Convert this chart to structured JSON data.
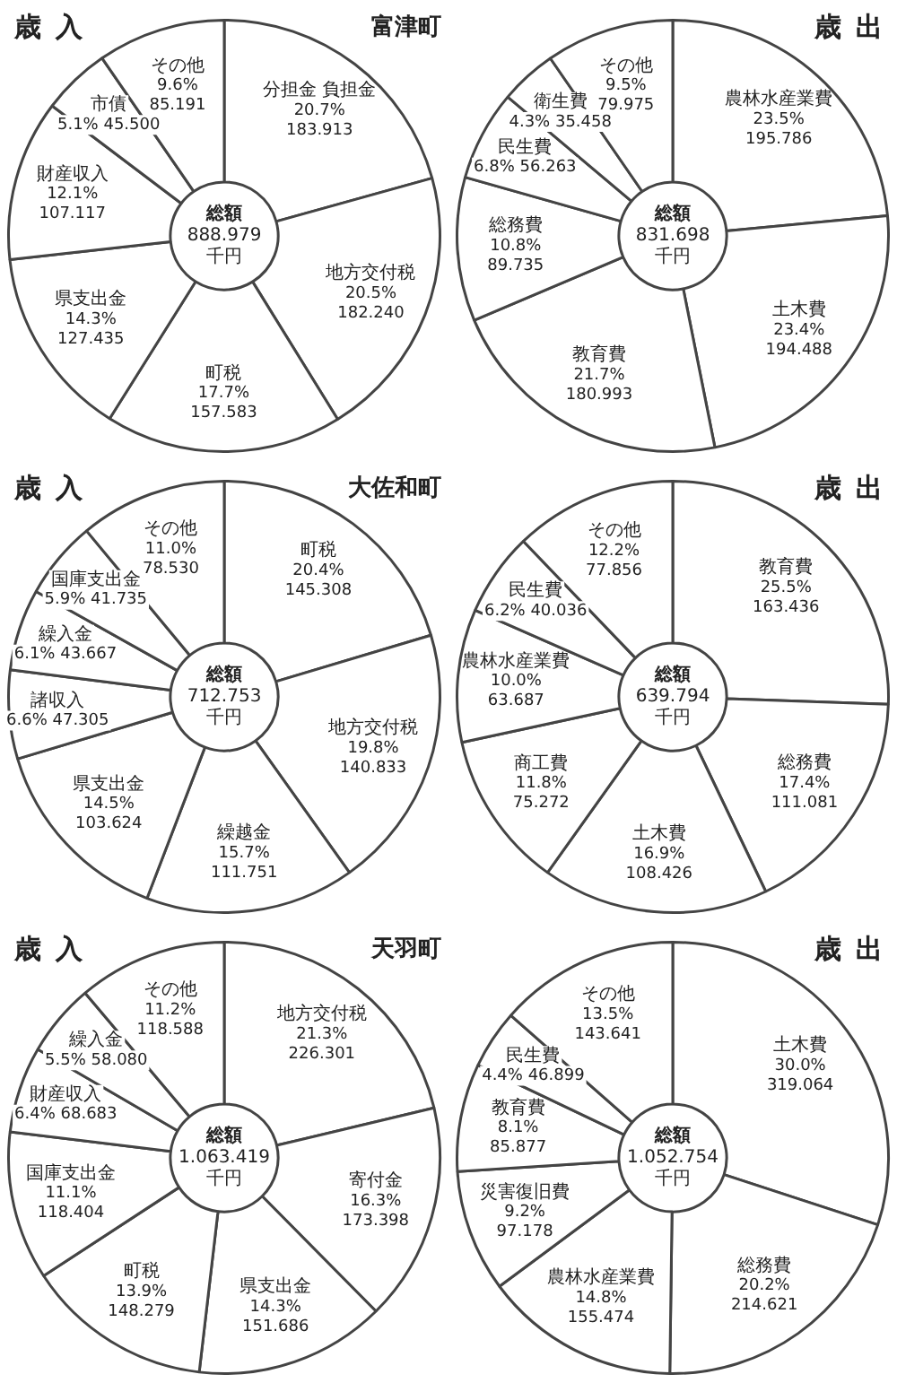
{
  "chart_data": [
    {
      "type": "donut",
      "title": "歳入",
      "subtitle": "富津町",
      "legend": false,
      "categories": [
        "分担金 負担金",
        "地方交付税",
        "町税",
        "県支出金",
        "財産収入",
        "市債",
        "その他"
      ],
      "values": [
        183.913,
        182.24,
        157.583,
        127.435,
        107.117,
        45.5,
        85.191
      ],
      "value_labels": [
        "20.7%\n183.913",
        "20.5%\n182.240",
        "17.7%\n157.583",
        "14.3%\n127.435",
        "12.1%\n107.117",
        "5.1%\n45.500",
        "9.6%\n85.191"
      ],
      "colors": [
        "#ffffff",
        "#ffffff",
        "#ffffff",
        "#ffffff",
        "#ffffff",
        "#ffffff",
        "#ffffff"
      ],
      "annotations": [
        "総額 888.979 千円"
      ]
    },
    {
      "type": "donut",
      "title": "歳出",
      "legend": false,
      "categories": [
        "農林水産業費",
        "土木費",
        "教育費",
        "総務費",
        "民生費",
        "衛生費",
        "その他"
      ],
      "values": [
        195.786,
        194.488,
        180.993,
        89.735,
        56.263,
        35.458,
        79.975
      ],
      "value_labels": [
        "23.5%\n195.786",
        "23.4%\n194.488",
        "21.7%\n180.993",
        "10.8%\n89.735",
        "6.8%\n56.263",
        "4.3%\n35.458",
        "9.5%\n79.975"
      ],
      "colors": [
        "#ffffff",
        "#ffffff",
        "#ffffff",
        "#ffffff",
        "#ffffff",
        "#ffffff",
        "#ffffff"
      ],
      "annotations": [
        "総額 831.698 千円"
      ]
    },
    {
      "type": "donut",
      "title": "歳入",
      "subtitle": "大佐和町",
      "legend": false,
      "categories": [
        "町税",
        "地方交付税",
        "繰越金",
        "県支出金",
        "諸収入",
        "繰入金",
        "国庫支出金",
        "その他"
      ],
      "values": [
        145.308,
        140.833,
        111.751,
        103.624,
        47.305,
        43.667,
        41.735,
        78.53
      ],
      "value_labels": [
        "20.4%\n145.308",
        "19.8%\n140.833",
        "15.7%\n111.751",
        "14.5%\n103.624",
        "6.6%\n47.305",
        "6.1%\n43.667",
        "5.9%\n41.735",
        "11.0%\n78.530"
      ],
      "colors": [
        "#ffffff",
        "#ffffff",
        "#ffffff",
        "#ffffff",
        "#ffffff",
        "#ffffff",
        "#ffffff",
        "#ffffff"
      ],
      "annotations": [
        "総額 712.753 千円"
      ]
    },
    {
      "type": "donut",
      "title": "歳出",
      "legend": false,
      "categories": [
        "教育費",
        "総務費",
        "土木費",
        "商工費",
        "農林水産業費",
        "民生費",
        "その他"
      ],
      "values": [
        163.436,
        111.081,
        108.426,
        75.272,
        63.687,
        40.036,
        77.856
      ],
      "value_labels": [
        "25.5%\n163.436",
        "17.4%\n111.081",
        "16.9%\n108.426",
        "11.8%\n75.272",
        "10.0%\n63.687",
        "6.2%\n40.036",
        "12.2%\n77.856"
      ],
      "colors": [
        "#ffffff",
        "#ffffff",
        "#ffffff",
        "#ffffff",
        "#ffffff",
        "#ffffff",
        "#ffffff"
      ],
      "annotations": [
        "総額 639.794 千円"
      ]
    },
    {
      "type": "donut",
      "title": "歳入",
      "subtitle": "天羽町",
      "legend": false,
      "categories": [
        "地方交付税",
        "寄付金",
        "県支出金",
        "町税",
        "国庫支出金",
        "財産収入",
        "繰入金",
        "その他"
      ],
      "values": [
        226.301,
        173.398,
        151.686,
        148.279,
        118.404,
        68.683,
        58.08,
        118.588
      ],
      "value_labels": [
        "21.3%\n226.301",
        "16.3%\n173.398",
        "14.3%\n151.686",
        "13.9%\n148.279",
        "11.1%\n118.404",
        "6.4%\n68.683",
        "5.5%\n58.080",
        "11.2%\n118.588"
      ],
      "colors": [
        "#ffffff",
        "#ffffff",
        "#ffffff",
        "#ffffff",
        "#ffffff",
        "#ffffff",
        "#ffffff",
        "#ffffff"
      ],
      "annotations": [
        "総額 1.063.419 千円"
      ]
    },
    {
      "type": "donut",
      "title": "歳出",
      "legend": false,
      "categories": [
        "土木費",
        "総務費",
        "農林水産業費",
        "災害復旧費",
        "教育費",
        "民生費",
        "その他"
      ],
      "values": [
        319.064,
        214.621,
        155.474,
        97.178,
        85.877,
        46.899,
        143.641
      ],
      "value_labels": [
        "30.0%\n319.064",
        "20.2%\n214.621",
        "14.8%\n155.474",
        "9.2%\n97.178",
        "8.1%\n85.877",
        "4.4%\n46.899",
        "13.5%\n143.641"
      ],
      "colors": [
        "#ffffff",
        "#ffffff",
        "#ffffff",
        "#ffffff",
        "#ffffff",
        "#ffffff",
        "#ffffff"
      ],
      "annotations": [
        "総額 1.052.754 千円"
      ]
    }
  ]
}
